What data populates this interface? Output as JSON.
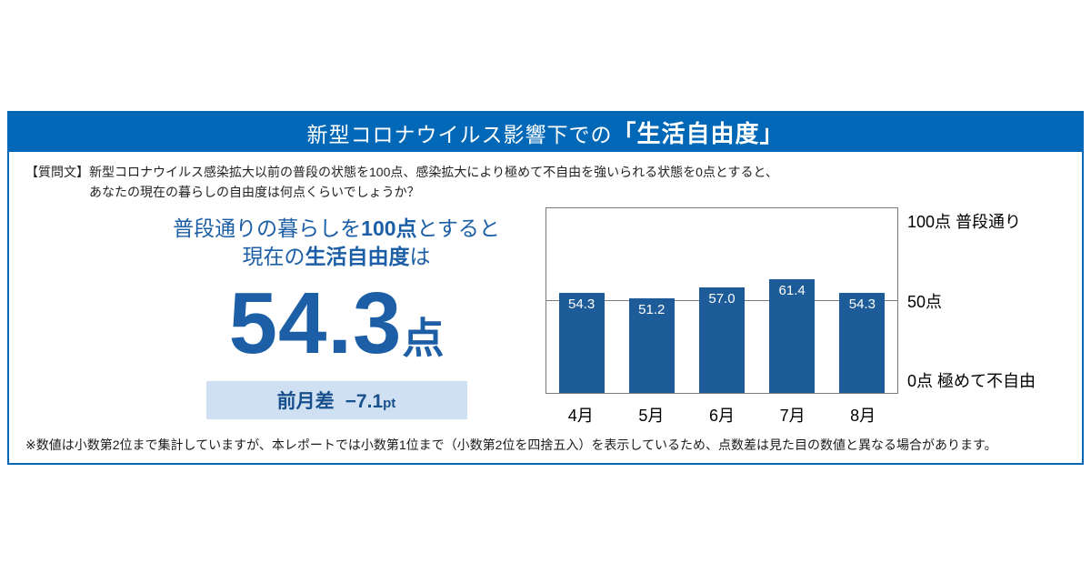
{
  "header": {
    "title_pre": "新型コロナウイルス影響下での",
    "title_em": "「生活自由度」"
  },
  "question": {
    "label": "【質問文】",
    "line1": "新型コロナウイルス感染拡大以前の普段の状態を100点、感染拡大により極めて不自由を強いられる状態を0点とすると、",
    "line2": "あなたの現在の暮らしの自由度は何点くらいでしょうか？"
  },
  "highlight": {
    "lead1": {
      "pre": "普段通りの暮らしを",
      "em": "100点",
      "post": "とすると"
    },
    "lead2": {
      "pre": "現在の",
      "em": "生活自由度",
      "post": "は"
    },
    "score": "54.3",
    "score_unit": "点",
    "badge": {
      "label": "前月差",
      "value": "−7.1",
      "unit": "pt"
    }
  },
  "chart_data": {
    "type": "bar",
    "categories": [
      "4月",
      "5月",
      "6月",
      "7月",
      "8月"
    ],
    "values": [
      54.3,
      51.2,
      57.0,
      61.4,
      54.3
    ],
    "value_labels": [
      "54.3",
      "51.2",
      "57.0",
      "61.4",
      "54.3"
    ],
    "ylim": [
      0,
      100
    ],
    "gridlines": [
      50
    ],
    "grid": true,
    "legend_position": "none",
    "axis_labels": {
      "top": "100点 普段通り",
      "mid": "50点",
      "bottom": "0点 極めて不自由"
    },
    "bar_color": "#1d5c99"
  },
  "footnote": "※数値は小数第2位まで集計していますが、本レポートでは小数第1位まで（小数第2位を四捨五入）を表示しているため、点数差は見た目の数値と異なる場合があります。",
  "colors": {
    "header_blue": "#0068b7",
    "panel_border": "#0068b7",
    "bar_blue": "#1d5c99",
    "text_blue": "#1d5fa6",
    "badge_bg": "#cfe0f2",
    "badge_text": "#174f8c"
  }
}
